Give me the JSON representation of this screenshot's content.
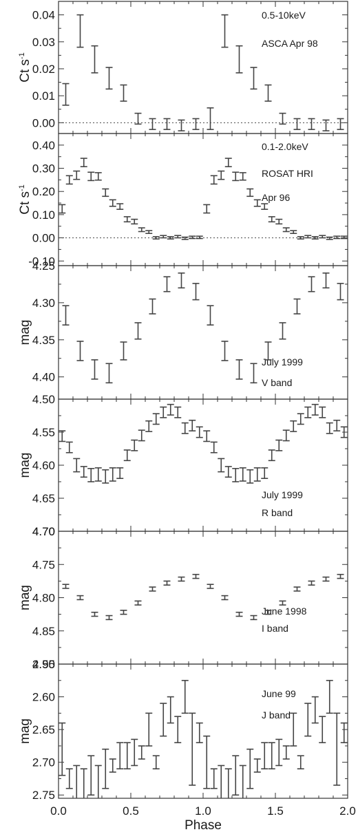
{
  "chart_data": [
    {
      "type": "scatter",
      "ylabel": "Ct s-1",
      "ylabel_parts": [
        "Ct s",
        "-1"
      ],
      "ylim": [
        -0.004,
        0.045
      ],
      "yticks": [
        0.0,
        0.01,
        0.02,
        0.03,
        0.04
      ],
      "ytick_labels": [
        "0.00",
        "0.01",
        "0.02",
        "0.03",
        "0.04"
      ],
      "zero_line": true,
      "annotations": [
        "0.5-10keV",
        "ASCA Apr 98"
      ],
      "series": [
        {
          "x": [
            0.05,
            0.15,
            0.25,
            0.35,
            0.45,
            0.55,
            0.65,
            0.75,
            0.85,
            0.95,
            1.05,
            1.15,
            1.25,
            1.35,
            1.45,
            1.55,
            1.65,
            1.75,
            1.85,
            1.95
          ],
          "y": [
            0.0105,
            0.034,
            0.0235,
            0.0165,
            0.011,
            0.0015,
            -0.0005,
            -0.0005,
            -0.001,
            -0.0005,
            0.0015,
            0.034,
            0.0235,
            0.0165,
            0.011,
            0.0015,
            -0.0005,
            -0.0005,
            -0.001,
            -0.0005
          ],
          "err": [
            0.004,
            0.006,
            0.005,
            0.004,
            0.003,
            0.002,
            0.002,
            0.002,
            0.002,
            0.002,
            0.004,
            0.006,
            0.005,
            0.004,
            0.003,
            0.002,
            0.002,
            0.002,
            0.002,
            0.002
          ]
        }
      ]
    },
    {
      "type": "scatter",
      "ylabel": "Ct s-1",
      "ylabel_parts": [
        "Ct s",
        "-1"
      ],
      "ylim": [
        -0.12,
        0.45
      ],
      "yticks": [
        -0.1,
        0.0,
        0.1,
        0.2,
        0.3,
        0.4
      ],
      "ytick_labels": [
        "-0.10",
        "0.00",
        "0.10",
        "0.20",
        "0.30",
        "0.40"
      ],
      "zero_line": true,
      "annotations": [
        "0.1-2.0keV",
        "ROSAT HRI",
        "Apr 96"
      ],
      "series": [
        {
          "x": [
            0.025,
            0.075,
            0.125,
            0.175,
            0.225,
            0.275,
            0.325,
            0.375,
            0.425,
            0.475,
            0.525,
            0.575,
            0.625,
            0.675,
            0.725,
            0.775,
            0.825,
            0.875,
            0.925,
            0.975,
            1.025,
            1.075,
            1.125,
            1.175,
            1.225,
            1.275,
            1.325,
            1.375,
            1.425,
            1.475,
            1.525,
            1.575,
            1.625,
            1.675,
            1.725,
            1.775,
            1.825,
            1.875,
            1.925,
            1.975
          ],
          "y": [
            0.125,
            0.25,
            0.27,
            0.325,
            0.265,
            0.265,
            0.195,
            0.15,
            0.135,
            0.08,
            0.07,
            0.035,
            0.025,
            0.0,
            0.005,
            0.0,
            0.005,
            -0.002,
            0.002,
            0.002,
            0.125,
            0.25,
            0.27,
            0.325,
            0.265,
            0.265,
            0.195,
            0.15,
            0.135,
            0.08,
            0.07,
            0.035,
            0.025,
            0.0,
            0.005,
            0.0,
            0.005,
            -0.002,
            0.002,
            0.002
          ],
          "err": [
            0.018,
            0.018,
            0.018,
            0.018,
            0.018,
            0.016,
            0.016,
            0.014,
            0.012,
            0.011,
            0.01,
            0.008,
            0.006,
            0.005,
            0.005,
            0.005,
            0.005,
            0.005,
            0.005,
            0.005,
            0.018,
            0.018,
            0.018,
            0.018,
            0.018,
            0.016,
            0.016,
            0.014,
            0.012,
            0.011,
            0.01,
            0.008,
            0.006,
            0.005,
            0.005,
            0.005,
            0.005,
            0.005,
            0.005,
            0.005
          ]
        }
      ]
    },
    {
      "type": "scatter",
      "ylabel": "mag",
      "ylim": [
        4.25,
        4.43
      ],
      "y_inverted": true,
      "yticks": [
        4.25,
        4.3,
        4.35,
        4.4
      ],
      "ytick_labels": [
        "4.25",
        "4.30",
        "4.35",
        "4.40"
      ],
      "annotations": [
        "July 1999",
        "V band"
      ],
      "series": [
        {
          "x": [
            0.05,
            0.15,
            0.25,
            0.35,
            0.45,
            0.55,
            0.65,
            0.75,
            0.85,
            0.95,
            1.05,
            1.15,
            1.25,
            1.35,
            1.45,
            1.55,
            1.65,
            1.75,
            1.85,
            1.95
          ],
          "y": [
            4.317,
            4.365,
            4.39,
            4.395,
            4.365,
            4.338,
            4.305,
            4.275,
            4.27,
            4.285,
            4.317,
            4.365,
            4.39,
            4.395,
            4.365,
            4.338,
            4.305,
            4.275,
            4.27,
            4.285
          ],
          "err": [
            0.013,
            0.013,
            0.013,
            0.013,
            0.012,
            0.011,
            0.01,
            0.01,
            0.01,
            0.011,
            0.013,
            0.013,
            0.013,
            0.013,
            0.012,
            0.011,
            0.01,
            0.01,
            0.01,
            0.011
          ]
        }
      ]
    },
    {
      "type": "scatter",
      "ylabel": "mag",
      "ylim": [
        4.5,
        4.7
      ],
      "y_inverted": true,
      "yticks": [
        4.5,
        4.55,
        4.6,
        4.65,
        4.7
      ],
      "ytick_labels": [
        "4.50",
        "4.55",
        "4.60",
        "4.65",
        "4.70"
      ],
      "annotations": [
        "July 1999",
        "R band"
      ],
      "series": [
        {
          "x": [
            0.025,
            0.075,
            0.125,
            0.175,
            0.225,
            0.275,
            0.325,
            0.375,
            0.425,
            0.475,
            0.525,
            0.575,
            0.625,
            0.675,
            0.725,
            0.775,
            0.825,
            0.875,
            0.925,
            0.975,
            1.025,
            1.075,
            1.125,
            1.175,
            1.225,
            1.275,
            1.325,
            1.375,
            1.425,
            1.475,
            1.525,
            1.575,
            1.625,
            1.675,
            1.725,
            1.775,
            1.825,
            1.875,
            1.925,
            1.975
          ],
          "y": [
            4.556,
            4.573,
            4.6,
            4.61,
            4.615,
            4.614,
            4.617,
            4.614,
            4.612,
            4.585,
            4.57,
            4.555,
            4.541,
            4.53,
            4.52,
            4.516,
            4.52,
            4.544,
            4.54,
            4.55,
            4.556,
            4.573,
            4.6,
            4.61,
            4.615,
            4.614,
            4.617,
            4.614,
            4.612,
            4.585,
            4.57,
            4.555,
            4.541,
            4.53,
            4.52,
            4.516,
            4.52,
            4.544,
            4.54,
            4.55
          ],
          "err": [
            0.008,
            0.008,
            0.01,
            0.008,
            0.01,
            0.01,
            0.01,
            0.01,
            0.008,
            0.008,
            0.008,
            0.008,
            0.008,
            0.008,
            0.008,
            0.008,
            0.008,
            0.008,
            0.008,
            0.008,
            0.008,
            0.008,
            0.01,
            0.008,
            0.01,
            0.01,
            0.01,
            0.01,
            0.008,
            0.008,
            0.008,
            0.008,
            0.008,
            0.008,
            0.008,
            0.008,
            0.008,
            0.008,
            0.008,
            0.008
          ]
        }
      ]
    },
    {
      "type": "scatter",
      "ylabel": "mag",
      "ylim": [
        4.7,
        4.9
      ],
      "y_inverted": true,
      "yticks": [
        4.7,
        4.75,
        4.8,
        4.85,
        4.9
      ],
      "ytick_labels": [
        "4.70",
        "4.75",
        "4.80",
        "4.85",
        "4.90"
      ],
      "annotations": [
        "June 1998",
        "I band"
      ],
      "series": [
        {
          "x": [
            0.05,
            0.15,
            0.25,
            0.35,
            0.45,
            0.55,
            0.65,
            0.75,
            0.85,
            0.95,
            1.05,
            1.15,
            1.25,
            1.35,
            1.45,
            1.55,
            1.65,
            1.75,
            1.85,
            1.95
          ],
          "y": [
            4.783,
            4.8,
            4.825,
            4.83,
            4.822,
            4.808,
            4.787,
            4.778,
            4.772,
            4.768,
            4.783,
            4.8,
            4.825,
            4.83,
            4.822,
            4.808,
            4.787,
            4.778,
            4.772,
            4.768
          ],
          "err": [
            0.003,
            0.003,
            0.003,
            0.003,
            0.003,
            0.003,
            0.003,
            0.003,
            0.003,
            0.003,
            0.003,
            0.003,
            0.003,
            0.003,
            0.003,
            0.003,
            0.003,
            0.003,
            0.003,
            0.003
          ]
        }
      ]
    },
    {
      "type": "scatter",
      "ylabel": "mag",
      "xlabel": "Phase",
      "xlim": [
        0.0,
        2.0
      ],
      "xticks": [
        0.0,
        0.5,
        1.0,
        1.5,
        2.0
      ],
      "xtick_labels": [
        "0.0",
        "0.5",
        "1.0",
        "1.5",
        "2.0"
      ],
      "ylim": [
        2.55,
        2.755
      ],
      "y_inverted": true,
      "yticks": [
        2.55,
        2.6,
        2.65,
        2.7,
        2.75
      ],
      "ytick_labels": [
        "2.55",
        "2.60",
        "2.65",
        "2.70",
        "2.75"
      ],
      "annotations": [
        "June 99",
        "J band"
      ],
      "series": [
        {
          "x": [
            0.025,
            0.075,
            0.125,
            0.175,
            0.225,
            0.275,
            0.325,
            0.375,
            0.425,
            0.475,
            0.525,
            0.575,
            0.625,
            0.675,
            0.725,
            0.775,
            0.825,
            0.875,
            0.925,
            0.975,
            1.025,
            1.075,
            1.125,
            1.175,
            1.225,
            1.275,
            1.325,
            1.375,
            1.425,
            1.475,
            1.525,
            1.575,
            1.625,
            1.675,
            1.725,
            1.775,
            1.825,
            1.875,
            1.925,
            1.975
          ],
          "y": [
            2.68,
            2.725,
            2.735,
            2.74,
            2.72,
            2.735,
            2.71,
            2.705,
            2.69,
            2.69,
            2.685,
            2.685,
            2.65,
            2.7,
            2.635,
            2.62,
            2.65,
            2.6,
            2.68,
            2.655,
            2.7,
            2.725,
            2.735,
            2.74,
            2.72,
            2.735,
            2.71,
            2.705,
            2.69,
            2.69,
            2.685,
            2.685,
            2.65,
            2.7,
            2.635,
            2.62,
            2.65,
            2.6,
            2.68,
            2.655
          ],
          "err": [
            0.04,
            0.015,
            0.03,
            0.03,
            0.03,
            0.03,
            0.03,
            0.01,
            0.02,
            0.02,
            0.02,
            0.01,
            0.025,
            0.01,
            0.025,
            0.02,
            0.02,
            0.025,
            0.055,
            0.015,
            0.04,
            0.015,
            0.03,
            0.03,
            0.03,
            0.03,
            0.03,
            0.01,
            0.02,
            0.02,
            0.02,
            0.01,
            0.025,
            0.01,
            0.025,
            0.02,
            0.02,
            0.025,
            0.055,
            0.015
          ]
        }
      ]
    }
  ]
}
